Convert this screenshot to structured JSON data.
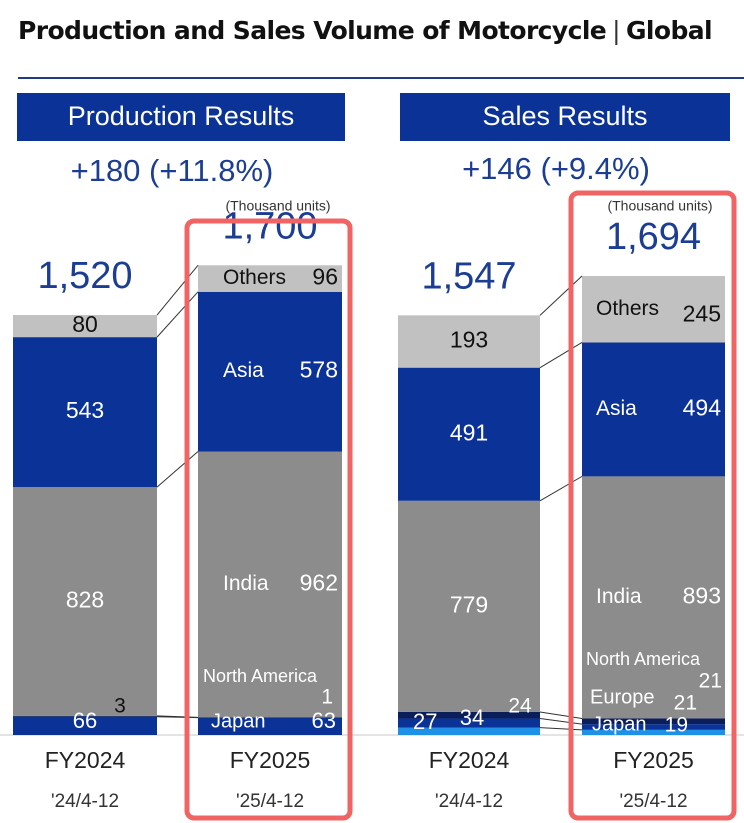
{
  "page": {
    "title": "Production and Sales Volume of Motorcycle",
    "separator": "|",
    "subtitle": "Global"
  },
  "colors": {
    "navy": "#0b3296",
    "gray": "#8c8c8c",
    "light_gray": "#c1c1c1",
    "bright_blue": "#1e90e6",
    "dark_navy": "#0a1e5a",
    "highlight": "#f06464"
  },
  "chart_data": [
    {
      "type": "bar",
      "stacked": true,
      "title": "Production Results",
      "change_text": "+180 (+11.8%)",
      "unit_label": "(Thousand units)",
      "categories": [
        "FY2024",
        "FY2025"
      ],
      "period_labels": [
        "'24/4-12",
        "'25/4-12"
      ],
      "totals": [
        1520,
        1700
      ],
      "total_labels": [
        "1,520",
        "1,700"
      ],
      "highlighted": "FY2025",
      "series": [
        {
          "name": "Japan",
          "color": "#0b3296",
          "values": [
            66,
            63
          ]
        },
        {
          "name": "North America",
          "color": "#0a1e5a",
          "values": [
            3,
            1
          ]
        },
        {
          "name": "India",
          "color": "#8c8c8c",
          "values": [
            828,
            962
          ]
        },
        {
          "name": "Asia",
          "color": "#0b3296",
          "values": [
            543,
            578
          ]
        },
        {
          "name": "Others",
          "color": "#c1c1c1",
          "values": [
            80,
            96
          ]
        }
      ]
    },
    {
      "type": "bar",
      "stacked": true,
      "title": "Sales Results",
      "change_text": "+146 (+9.4%)",
      "unit_label": "(Thousand units)",
      "categories": [
        "FY2024",
        "FY2025"
      ],
      "period_labels": [
        "'24/4-12",
        "'25/4-12"
      ],
      "totals": [
        1547,
        1694
      ],
      "total_labels": [
        "1,547",
        "1,694"
      ],
      "highlighted": "FY2025",
      "series": [
        {
          "name": "Japan",
          "color": "#1e90e6",
          "values": [
            27,
            19
          ]
        },
        {
          "name": "Europe",
          "color": "#0b3296",
          "values": [
            34,
            21
          ]
        },
        {
          "name": "North America",
          "color": "#0a1e5a",
          "values": [
            24,
            21
          ]
        },
        {
          "name": "India",
          "color": "#8c8c8c",
          "values": [
            779,
            893
          ]
        },
        {
          "name": "Asia",
          "color": "#0b3296",
          "values": [
            491,
            494
          ]
        },
        {
          "name": "Others",
          "color": "#c1c1c1",
          "values": [
            193,
            245
          ]
        }
      ]
    }
  ]
}
